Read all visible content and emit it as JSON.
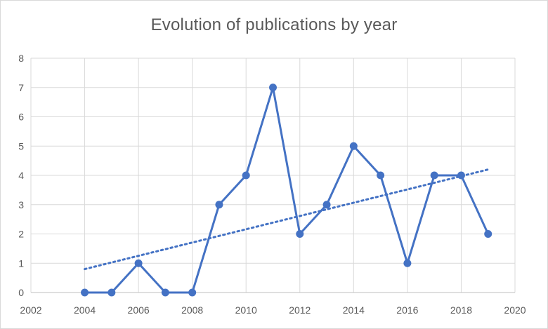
{
  "chart_data": {
    "type": "line",
    "title": "Evolution of publications by year",
    "xlabel": "",
    "ylabel": "",
    "xlim": [
      2002,
      2020
    ],
    "ylim": [
      0,
      8
    ],
    "xticks": [
      2002,
      2004,
      2006,
      2008,
      2010,
      2012,
      2014,
      2016,
      2018,
      2020
    ],
    "yticks": [
      0,
      1,
      2,
      3,
      4,
      5,
      6,
      7,
      8
    ],
    "grid": true,
    "legend": "none",
    "series": [
      {
        "x": [
          2004,
          2005,
          2006,
          2007,
          2008,
          2009,
          2010,
          2011,
          2012,
          2013,
          2014,
          2015,
          2016,
          2017,
          2018,
          2019
        ],
        "y": [
          0,
          0,
          1,
          0,
          0,
          3,
          4,
          7,
          2,
          3,
          5,
          4,
          1,
          4,
          4,
          2
        ],
        "color": "#4472c4",
        "marker": "circle"
      }
    ],
    "trendline": {
      "type": "linear",
      "style": "dotted",
      "color": "#4472c4",
      "x": [
        2004,
        2019
      ],
      "y": [
        0.8,
        4.2
      ]
    }
  }
}
